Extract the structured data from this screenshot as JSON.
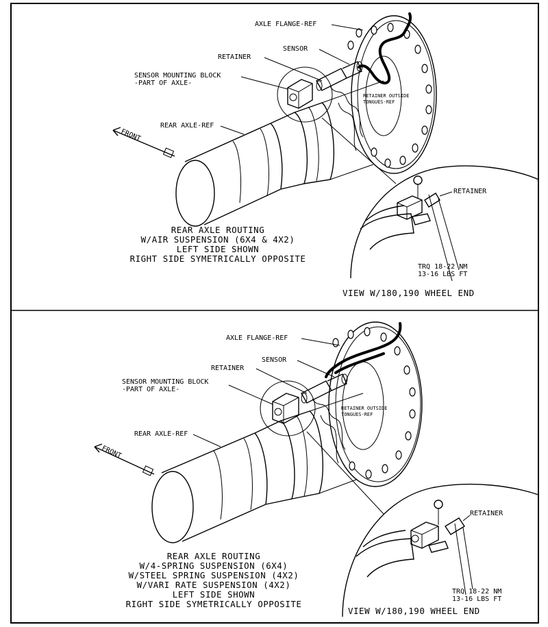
{
  "top": {
    "labels": {
      "axle_flange": "AXLE FLANGE-REF",
      "sensor": "SENSOR",
      "retainer": "RETAINER",
      "mounting_block_1": "SENSOR MOUNTING BLOCK",
      "mounting_block_2": "-PART OF AXLE-",
      "retainer_outside_1": "RETAINER OUTSIDE",
      "retainer_outside_2": "TONGUES-REF",
      "rear_axle": "REAR AXLE-REF",
      "front": "FRONT",
      "detail_retainer": "RETAINER",
      "torque_1": "TRQ 18-22 NM",
      "torque_2": "13-16 LBS FT",
      "view": "VIEW W/180,190 WHEEL END"
    },
    "caption": [
      "REAR AXLE ROUTING",
      "W/AIR SUSPENSION (6X4 & 4X2)",
      "LEFT SIDE SHOWN",
      "RIGHT SIDE SYMETRICALLY OPPOSITE"
    ]
  },
  "bottom": {
    "labels": {
      "axle_flange": "AXLE FLANGE-REF",
      "sensor": "SENSOR",
      "retainer": "RETAINER",
      "mounting_block_1": "SENSOR MOUNTING BLOCK",
      "mounting_block_2": "-PART OF AXLE-",
      "retainer_outside_1": "RETAINER OUTSIDE",
      "retainer_outside_2": "TONGUES-REF",
      "rear_axle": "REAR AXLE-REF",
      "front": "FRONT",
      "detail_retainer": "RETAINER",
      "torque_1": "TRQ 18-22 NM",
      "torque_2": "13-16 LBS FT",
      "view": "VIEW W/180,190 WHEEL END"
    },
    "caption": [
      "REAR AXLE ROUTING",
      "W/4-SPRING SUSPENSION (6X4)",
      "W/STEEL SPRING SUSPENSION (4X2)",
      "W/VARI RATE SUSPENSION (4X2)",
      "LEFT SIDE SHOWN",
      "RIGHT SIDE SYMETRICALLY OPPOSITE"
    ]
  }
}
